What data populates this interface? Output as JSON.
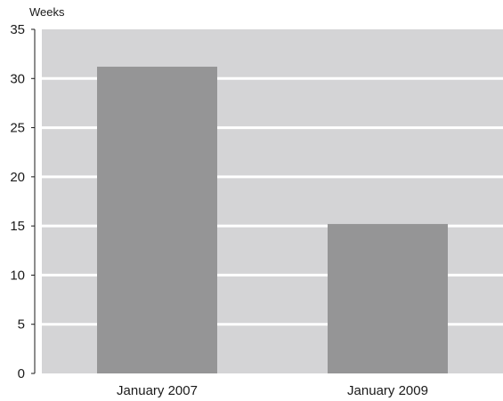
{
  "chart_data": {
    "type": "bar",
    "ylabel": "Weeks",
    "categories": [
      "January 2007",
      "January 2009"
    ],
    "values": [
      31.2,
      15.2
    ],
    "ylim": [
      0,
      35
    ],
    "yticks": [
      "0",
      "5",
      "10",
      "15",
      "20",
      "25",
      "30",
      "35"
    ],
    "grid": true,
    "colors": {
      "plot_background": "#d4d4d6",
      "bar": "#959596",
      "gridline": "#ffffff",
      "axis": "#1a1a1a"
    }
  }
}
